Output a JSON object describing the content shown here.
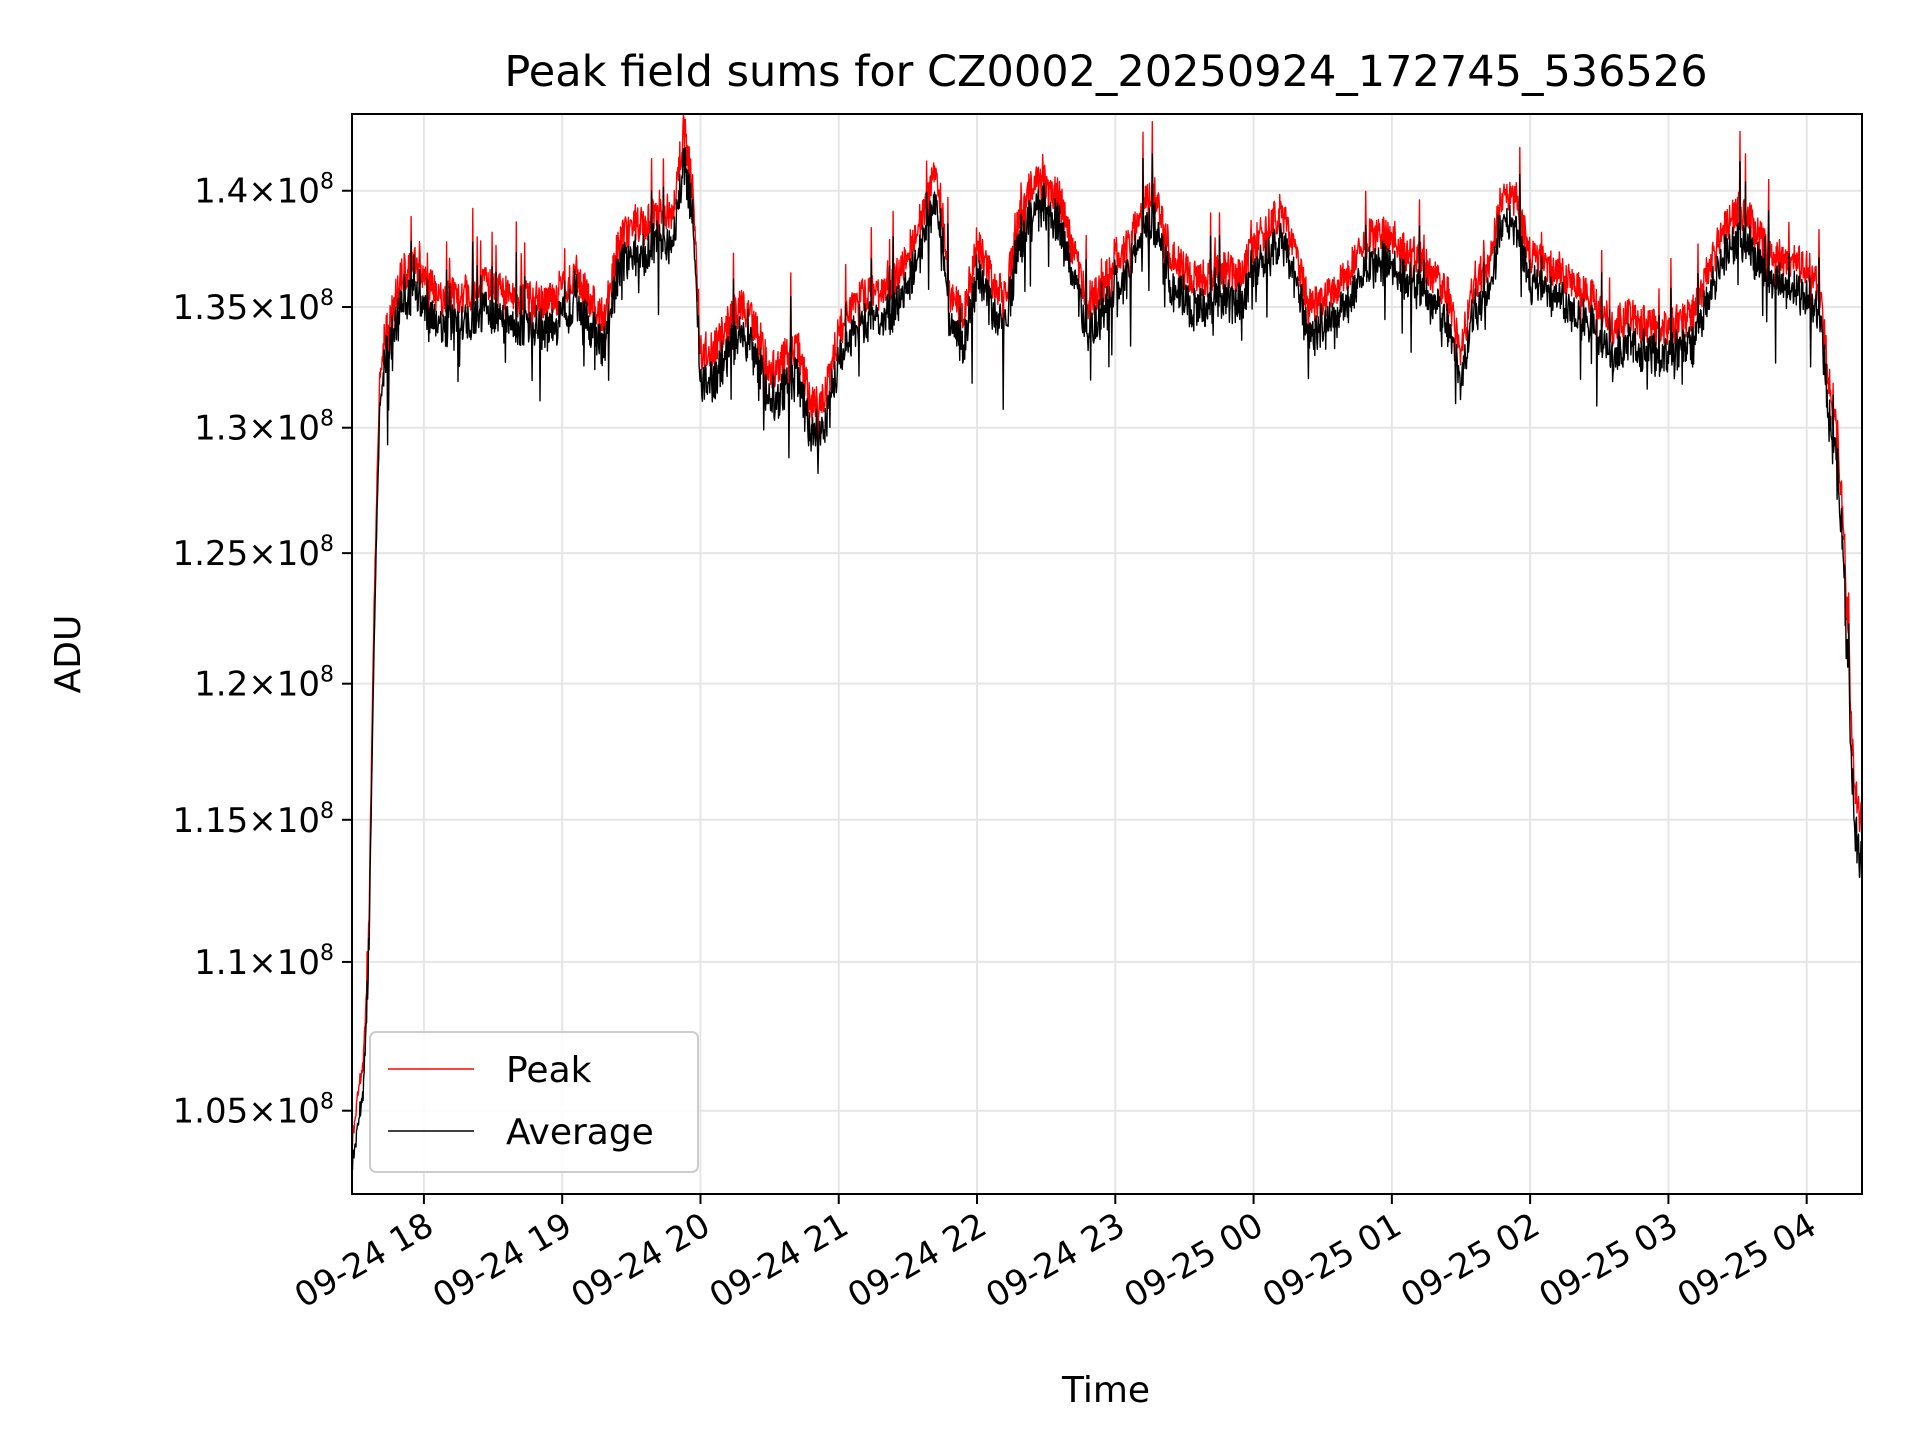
{
  "chart_data": {
    "type": "line",
    "title": "Peak field sums for CZ0002_20250924_172745_536526",
    "xlabel": "Time",
    "ylabel": "ADU",
    "y_scale": "log",
    "xlim_hours": [
      17.48,
      28.4
    ],
    "ylim": [
      102300000,
      143400000
    ],
    "grid": true,
    "legend_position": "lower-left",
    "x_ticks": [
      {
        "label": "09-24 18",
        "hour": 18
      },
      {
        "label": "09-24 19",
        "hour": 19
      },
      {
        "label": "09-24 20",
        "hour": 20
      },
      {
        "label": "09-24 21",
        "hour": 21
      },
      {
        "label": "09-24 22",
        "hour": 22
      },
      {
        "label": "09-24 23",
        "hour": 23
      },
      {
        "label": "09-25 00",
        "hour": 24
      },
      {
        "label": "09-25 01",
        "hour": 25
      },
      {
        "label": "09-25 02",
        "hour": 26
      },
      {
        "label": "09-25 03",
        "hour": 27
      },
      {
        "label": "09-25 04",
        "hour": 28
      }
    ],
    "y_ticks": [
      {
        "mantissa": "1.05",
        "exponent": "8",
        "value": 105000000
      },
      {
        "mantissa": "1.1",
        "exponent": "8",
        "value": 110000000
      },
      {
        "mantissa": "1.15",
        "exponent": "8",
        "value": 115000000
      },
      {
        "mantissa": "1.2",
        "exponent": "8",
        "value": 120000000
      },
      {
        "mantissa": "1.25",
        "exponent": "8",
        "value": 125000000
      },
      {
        "mantissa": "1.3",
        "exponent": "8",
        "value": 130000000
      },
      {
        "mantissa": "1.35",
        "exponent": "8",
        "value": 135000000
      },
      {
        "mantissa": "1.4",
        "exponent": "8",
        "value": 140000000
      }
    ],
    "series": [
      {
        "name": "Peak",
        "color": "#ff0000",
        "points": [
          [
            17.48,
            104.0
          ],
          [
            17.52,
            105.5
          ],
          [
            17.56,
            106.5
          ],
          [
            17.6,
            110.5
          ],
          [
            17.64,
            123.0
          ],
          [
            17.68,
            132.0
          ],
          [
            17.72,
            133.8
          ],
          [
            17.78,
            135.0
          ],
          [
            17.85,
            136.5
          ],
          [
            17.95,
            136.8
          ],
          [
            18.05,
            135.8
          ],
          [
            18.15,
            135.3
          ],
          [
            18.3,
            135.6
          ],
          [
            18.45,
            135.9
          ],
          [
            18.6,
            135.5
          ],
          [
            18.75,
            135.3
          ],
          [
            18.9,
            135.2
          ],
          [
            19.0,
            135.6
          ],
          [
            19.1,
            136.5
          ],
          [
            19.2,
            135.3
          ],
          [
            19.3,
            134.5
          ],
          [
            19.4,
            137.5
          ],
          [
            19.5,
            138.6
          ],
          [
            19.6,
            138.5
          ],
          [
            19.7,
            139.3
          ],
          [
            19.8,
            139.0
          ],
          [
            19.88,
            142.8
          ],
          [
            19.95,
            139.8
          ],
          [
            20.0,
            133.2
          ],
          [
            20.1,
            133.4
          ],
          [
            20.2,
            134.3
          ],
          [
            20.3,
            135.1
          ],
          [
            20.4,
            134.2
          ],
          [
            20.5,
            132.3
          ],
          [
            20.6,
            132.8
          ],
          [
            20.7,
            133.5
          ],
          [
            20.8,
            130.8
          ],
          [
            20.9,
            131.2
          ],
          [
            21.0,
            134.0
          ],
          [
            21.1,
            134.9
          ],
          [
            21.2,
            135.6
          ],
          [
            21.3,
            135.5
          ],
          [
            21.4,
            136.0
          ],
          [
            21.5,
            137.2
          ],
          [
            21.6,
            138.8
          ],
          [
            21.7,
            140.8
          ],
          [
            21.75,
            139.0
          ],
          [
            21.8,
            135.6
          ],
          [
            21.9,
            134.6
          ],
          [
            22.0,
            137.7
          ],
          [
            22.1,
            136.3
          ],
          [
            22.2,
            135.3
          ],
          [
            22.3,
            138.6
          ],
          [
            22.4,
            140.2
          ],
          [
            22.5,
            140.4
          ],
          [
            22.6,
            139.6
          ],
          [
            22.7,
            137.2
          ],
          [
            22.8,
            135.3
          ],
          [
            22.9,
            135.6
          ],
          [
            23.0,
            137.2
          ],
          [
            23.1,
            137.6
          ],
          [
            23.2,
            139.5
          ],
          [
            23.3,
            139.9
          ],
          [
            23.4,
            137.1
          ],
          [
            23.5,
            136.5
          ],
          [
            23.6,
            136.2
          ],
          [
            23.7,
            136.3
          ],
          [
            23.8,
            136.6
          ],
          [
            23.9,
            136.3
          ],
          [
            24.0,
            137.6
          ],
          [
            24.1,
            138.4
          ],
          [
            24.2,
            139.1
          ],
          [
            24.3,
            137.1
          ],
          [
            24.4,
            135.2
          ],
          [
            24.5,
            135.1
          ],
          [
            24.6,
            135.9
          ],
          [
            24.7,
            136.6
          ],
          [
            24.8,
            137.8
          ],
          [
            24.9,
            138.2
          ],
          [
            25.0,
            138.0
          ],
          [
            25.1,
            137.3
          ],
          [
            25.2,
            137.1
          ],
          [
            25.3,
            136.3
          ],
          [
            25.4,
            135.6
          ],
          [
            25.5,
            133.3
          ],
          [
            25.6,
            136.1
          ],
          [
            25.7,
            136.8
          ],
          [
            25.8,
            139.9
          ],
          [
            25.9,
            139.6
          ],
          [
            26.0,
            137.2
          ],
          [
            26.1,
            136.8
          ],
          [
            26.2,
            136.6
          ],
          [
            26.3,
            136.0
          ],
          [
            26.4,
            135.7
          ],
          [
            26.5,
            135.2
          ],
          [
            26.6,
            134.1
          ],
          [
            26.7,
            134.6
          ],
          [
            26.8,
            134.3
          ],
          [
            26.9,
            134.2
          ],
          [
            27.0,
            134.1
          ],
          [
            27.1,
            134.4
          ],
          [
            27.2,
            134.9
          ],
          [
            27.3,
            136.8
          ],
          [
            27.4,
            138.2
          ],
          [
            27.5,
            139.2
          ],
          [
            27.6,
            138.6
          ],
          [
            27.7,
            137.6
          ],
          [
            27.8,
            137.2
          ],
          [
            27.9,
            137.0
          ],
          [
            28.0,
            136.7
          ],
          [
            28.1,
            135.6
          ],
          [
            28.14,
            133.0
          ],
          [
            28.18,
            130.8
          ],
          [
            28.22,
            129.8
          ],
          [
            28.26,
            127.0
          ],
          [
            28.3,
            122.5
          ],
          [
            28.33,
            117.5
          ],
          [
            28.36,
            115.8
          ],
          [
            28.4,
            114.9
          ]
        ]
      },
      {
        "name": "Average",
        "color": "#000000",
        "points": [
          [
            17.48,
            103.3
          ],
          [
            17.52,
            104.5
          ],
          [
            17.56,
            105.6
          ],
          [
            17.6,
            109.6
          ],
          [
            17.64,
            121.5
          ],
          [
            17.68,
            130.8
          ],
          [
            17.72,
            132.8
          ],
          [
            17.78,
            134.0
          ],
          [
            17.85,
            135.5
          ],
          [
            17.95,
            135.7
          ],
          [
            18.05,
            134.6
          ],
          [
            18.15,
            134.2
          ],
          [
            18.3,
            134.5
          ],
          [
            18.45,
            134.8
          ],
          [
            18.6,
            134.4
          ],
          [
            18.75,
            134.2
          ],
          [
            18.9,
            134.1
          ],
          [
            19.0,
            134.6
          ],
          [
            19.1,
            135.5
          ],
          [
            19.2,
            134.2
          ],
          [
            19.3,
            133.4
          ],
          [
            19.4,
            136.5
          ],
          [
            19.5,
            137.4
          ],
          [
            19.6,
            137.2
          ],
          [
            19.7,
            138.1
          ],
          [
            19.8,
            137.8
          ],
          [
            19.88,
            141.6
          ],
          [
            19.95,
            138.6
          ],
          [
            20.0,
            132.1
          ],
          [
            20.1,
            132.2
          ],
          [
            20.2,
            133.2
          ],
          [
            20.3,
            134.0
          ],
          [
            20.4,
            133.1
          ],
          [
            20.5,
            131.2
          ],
          [
            20.6,
            131.7
          ],
          [
            20.7,
            132.4
          ],
          [
            20.8,
            129.7
          ],
          [
            20.9,
            130.1
          ],
          [
            21.0,
            132.9
          ],
          [
            21.1,
            133.8
          ],
          [
            21.2,
            134.5
          ],
          [
            21.3,
            134.4
          ],
          [
            21.4,
            134.9
          ],
          [
            21.5,
            136.1
          ],
          [
            21.6,
            137.7
          ],
          [
            21.7,
            139.5
          ],
          [
            21.75,
            137.9
          ],
          [
            21.8,
            134.5
          ],
          [
            21.9,
            133.5
          ],
          [
            22.0,
            136.6
          ],
          [
            22.1,
            135.2
          ],
          [
            22.2,
            134.2
          ],
          [
            22.3,
            137.5
          ],
          [
            22.4,
            139.1
          ],
          [
            22.5,
            139.3
          ],
          [
            22.6,
            138.5
          ],
          [
            22.7,
            136.1
          ],
          [
            22.8,
            134.2
          ],
          [
            22.9,
            134.5
          ],
          [
            23.0,
            136.1
          ],
          [
            23.1,
            136.5
          ],
          [
            23.2,
            138.4
          ],
          [
            23.3,
            138.8
          ],
          [
            23.4,
            136.0
          ],
          [
            23.5,
            135.4
          ],
          [
            23.6,
            135.1
          ],
          [
            23.7,
            135.2
          ],
          [
            23.8,
            135.5
          ],
          [
            23.9,
            135.2
          ],
          [
            24.0,
            136.5
          ],
          [
            24.1,
            137.3
          ],
          [
            24.2,
            138.0
          ],
          [
            24.3,
            136.0
          ],
          [
            24.4,
            134.1
          ],
          [
            24.5,
            134.0
          ],
          [
            24.6,
            134.8
          ],
          [
            24.7,
            135.5
          ],
          [
            24.8,
            136.7
          ],
          [
            24.9,
            137.1
          ],
          [
            25.0,
            136.9
          ],
          [
            25.1,
            136.2
          ],
          [
            25.2,
            136.0
          ],
          [
            25.3,
            135.2
          ],
          [
            25.4,
            134.5
          ],
          [
            25.5,
            132.2
          ],
          [
            25.6,
            135.0
          ],
          [
            25.7,
            135.7
          ],
          [
            25.8,
            138.8
          ],
          [
            25.9,
            138.5
          ],
          [
            26.0,
            136.1
          ],
          [
            26.1,
            135.7
          ],
          [
            26.2,
            135.5
          ],
          [
            26.3,
            134.9
          ],
          [
            26.4,
            134.6
          ],
          [
            26.5,
            134.1
          ],
          [
            26.6,
            133.0
          ],
          [
            26.7,
            133.5
          ],
          [
            26.8,
            133.2
          ],
          [
            26.9,
            133.1
          ],
          [
            27.0,
            133.0
          ],
          [
            27.1,
            133.3
          ],
          [
            27.2,
            133.8
          ],
          [
            27.3,
            135.7
          ],
          [
            27.4,
            137.1
          ],
          [
            27.5,
            138.1
          ],
          [
            27.6,
            137.5
          ],
          [
            27.7,
            136.5
          ],
          [
            27.8,
            136.1
          ],
          [
            27.9,
            135.9
          ],
          [
            28.0,
            135.6
          ],
          [
            28.1,
            134.5
          ],
          [
            28.14,
            131.8
          ],
          [
            28.18,
            129.6
          ],
          [
            28.22,
            128.6
          ],
          [
            28.26,
            125.8
          ],
          [
            28.3,
            121.2
          ],
          [
            28.33,
            116.3
          ],
          [
            28.36,
            114.4
          ],
          [
            28.4,
            113.4
          ]
        ]
      }
    ],
    "point_units": "hours since 09-24 00:00, ADU in millions"
  }
}
